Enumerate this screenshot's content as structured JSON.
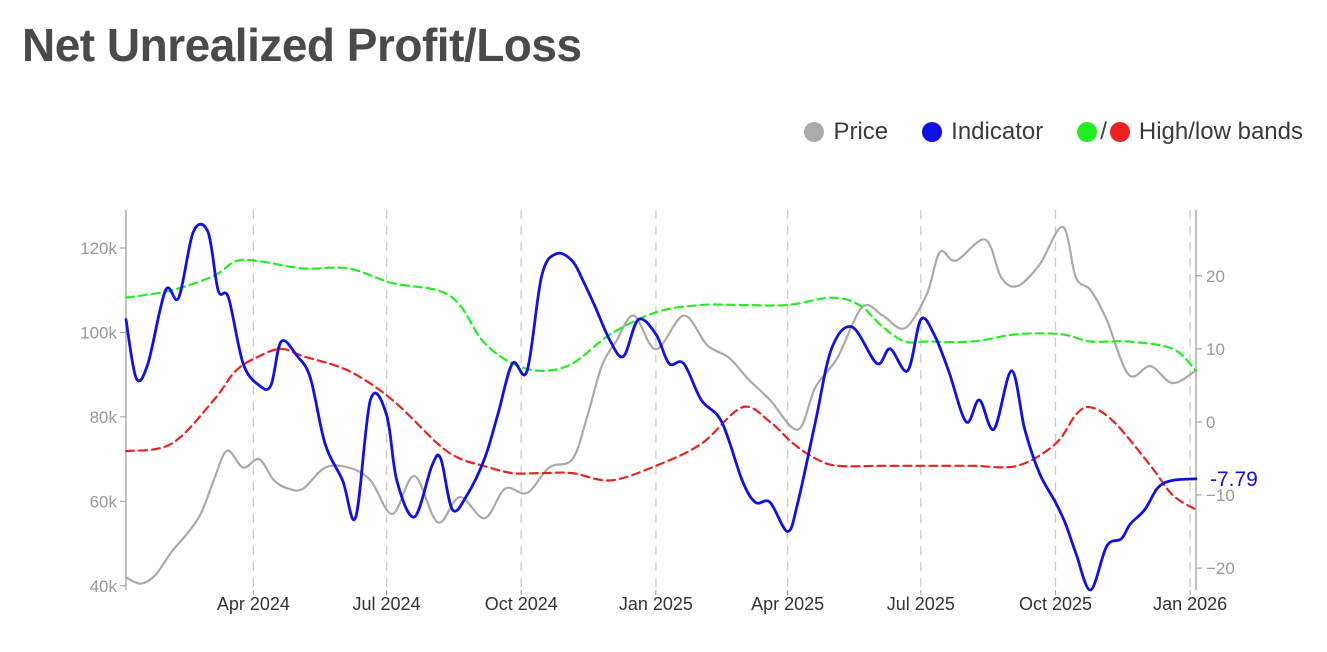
{
  "title": "Net Unrealized Profit/Loss",
  "legend": {
    "price_label": "Price",
    "indicator_label": "Indicator",
    "bands_label": "High/low bands",
    "bands_separator": "/"
  },
  "colors": {
    "price": "#aaaaaa",
    "indicator": "#1010e8",
    "high_band": "#22ee22",
    "low_band": "#ee2020",
    "axis_text": "#999999",
    "grid": "#cccccc"
  },
  "chart_data": {
    "type": "line",
    "title": "Net Unrealized Profit/Loss",
    "x_ticks": [
      "Apr 2024",
      "Jul 2024",
      "Oct 2024",
      "Jan 2025",
      "Apr 2025",
      "Jul 2025",
      "Oct 2025",
      "Jan 2026"
    ],
    "y_left": {
      "label": "",
      "ticks": [
        "40k",
        "60k",
        "80k",
        "100k",
        "120k"
      ],
      "tick_values": [
        40000,
        60000,
        80000,
        100000,
        120000
      ],
      "range": [
        39000,
        129000
      ]
    },
    "y_right": {
      "label": "",
      "ticks": [
        "20",
        "10",
        "0",
        "−10",
        "−20"
      ],
      "tick_values": [
        20,
        10,
        0,
        -10,
        -20
      ],
      "range": [
        -23,
        29
      ]
    },
    "current_value_label": "-7.79",
    "current_value": -7.79,
    "x_range": [
      "2024-01-05",
      "2026-01-05"
    ],
    "vertical_grid_dashed": true,
    "legend_position": "top-right",
    "series": [
      {
        "name": "Price",
        "axis": "left",
        "style": "solid",
        "x": [
          "2024-01-05",
          "2024-01-15",
          "2024-01-25",
          "2024-02-05",
          "2024-02-15",
          "2024-02-25",
          "2024-03-05",
          "2024-03-14",
          "2024-03-25",
          "2024-04-05",
          "2024-04-15",
          "2024-04-25",
          "2024-05-05",
          "2024-05-20",
          "2024-06-05",
          "2024-06-20",
          "2024-07-05",
          "2024-07-20",
          "2024-08-05",
          "2024-08-20",
          "2024-09-06",
          "2024-09-20",
          "2024-10-05",
          "2024-10-20",
          "2024-11-05",
          "2024-11-15",
          "2024-11-25",
          "2024-12-05",
          "2024-12-17",
          "2025-01-01",
          "2025-01-20",
          "2025-02-05",
          "2025-02-20",
          "2025-03-05",
          "2025-03-20",
          "2025-04-08",
          "2025-04-20",
          "2025-05-05",
          "2025-05-22",
          "2025-06-05",
          "2025-06-20",
          "2025-07-05",
          "2025-07-14",
          "2025-07-25",
          "2025-08-14",
          "2025-08-25",
          "2025-09-05",
          "2025-09-20",
          "2025-10-06",
          "2025-10-15",
          "2025-10-25",
          "2025-11-05",
          "2025-11-20",
          "2025-12-05",
          "2025-12-20",
          "2026-01-05"
        ],
        "y": [
          42000,
          40500,
          42500,
          48000,
          52000,
          57000,
          65000,
          72000,
          68000,
          70000,
          65000,
          63000,
          63000,
          68000,
          68000,
          65000,
          57000,
          66000,
          55000,
          61000,
          56000,
          63000,
          62000,
          68000,
          70000,
          80000,
          92000,
          98000,
          104000,
          96000,
          104000,
          97000,
          94000,
          89000,
          84000,
          77000,
          87000,
          94000,
          106000,
          104000,
          101000,
          109000,
          119000,
          117000,
          122000,
          113000,
          111000,
          116000,
          125000,
          113000,
          110000,
          103000,
          90000,
          92000,
          88000,
          91000
        ]
      },
      {
        "name": "Indicator",
        "axis": "right",
        "style": "solid",
        "x": [
          "2024-01-05",
          "2024-01-12",
          "2024-01-20",
          "2024-02-01",
          "2024-02-10",
          "2024-02-20",
          "2024-03-01",
          "2024-03-08",
          "2024-03-15",
          "2024-03-25",
          "2024-04-05",
          "2024-04-13",
          "2024-04-20",
          "2024-05-01",
          "2024-05-10",
          "2024-05-20",
          "2024-06-01",
          "2024-06-10",
          "2024-06-20",
          "2024-07-01",
          "2024-07-08",
          "2024-07-20",
          "2024-08-01",
          "2024-08-07",
          "2024-08-15",
          "2024-08-25",
          "2024-09-06",
          "2024-09-15",
          "2024-09-25",
          "2024-10-05",
          "2024-10-15",
          "2024-10-25",
          "2024-11-05",
          "2024-11-13",
          "2024-11-20",
          "2024-12-01",
          "2024-12-10",
          "2024-12-20",
          "2025-01-01",
          "2025-01-10",
          "2025-01-20",
          "2025-02-01",
          "2025-02-15",
          "2025-03-01",
          "2025-03-10",
          "2025-03-20",
          "2025-04-01",
          "2025-04-08",
          "2025-04-20",
          "2025-05-01",
          "2025-05-15",
          "2025-06-01",
          "2025-06-10",
          "2025-06-22",
          "2025-07-01",
          "2025-07-10",
          "2025-07-20",
          "2025-08-01",
          "2025-08-10",
          "2025-08-20",
          "2025-09-01",
          "2025-09-10",
          "2025-09-20",
          "2025-10-01",
          "2025-10-08",
          "2025-10-15",
          "2025-10-25",
          "2025-11-05",
          "2025-11-15",
          "2025-11-21",
          "2025-12-01",
          "2025-12-10",
          "2025-12-20",
          "2026-01-05"
        ],
        "y": [
          14,
          6,
          8,
          18,
          17,
          26,
          26,
          18,
          17,
          8,
          5,
          5,
          11,
          9,
          6,
          -3,
          -8,
          -13,
          3,
          1,
          -8,
          -13,
          -6,
          -5,
          -12,
          -10,
          -5,
          1,
          8,
          7,
          20,
          23,
          22,
          19,
          16,
          11,
          9,
          14,
          12,
          8,
          8,
          3,
          0,
          -8,
          -11,
          -11,
          -15,
          -11,
          0,
          10,
          13,
          8,
          10,
          7,
          14,
          12,
          7,
          0,
          3,
          -1,
          7,
          -1,
          -7,
          -11,
          -14,
          -18,
          -23,
          -17,
          -16,
          -14,
          -12,
          -9,
          -8,
          -7.79
        ]
      },
      {
        "name": "High band",
        "axis": "right",
        "style": "dashed",
        "x": [
          "2024-01-05",
          "2024-02-05",
          "2024-03-05",
          "2024-03-20",
          "2024-04-05",
          "2024-05-05",
          "2024-06-05",
          "2024-07-05",
          "2024-08-05",
          "2024-08-20",
          "2024-09-05",
          "2024-09-25",
          "2024-10-15",
          "2024-11-05",
          "2024-12-01",
          "2025-01-01",
          "2025-02-01",
          "2025-03-01",
          "2025-04-01",
          "2025-05-01",
          "2025-05-20",
          "2025-06-05",
          "2025-06-20",
          "2025-07-05",
          "2025-08-05",
          "2025-09-05",
          "2025-10-05",
          "2025-10-25",
          "2025-11-20",
          "2025-12-20",
          "2026-01-05"
        ],
        "y": [
          17,
          18,
          20,
          22,
          22,
          21,
          21,
          19,
          18,
          16,
          11,
          8,
          7,
          8,
          12,
          15,
          16,
          16,
          16,
          17,
          16,
          13,
          11,
          11,
          11,
          12,
          12,
          11,
          11,
          10,
          7
        ]
      },
      {
        "name": "Low band",
        "axis": "right",
        "style": "dashed",
        "x": [
          "2024-01-05",
          "2024-02-05",
          "2024-03-05",
          "2024-03-20",
          "2024-04-05",
          "2024-04-20",
          "2024-05-05",
          "2024-06-05",
          "2024-07-05",
          "2024-08-05",
          "2024-08-20",
          "2024-09-05",
          "2024-09-25",
          "2024-10-15",
          "2024-11-05",
          "2024-12-01",
          "2025-01-01",
          "2025-02-01",
          "2025-03-01",
          "2025-03-20",
          "2025-04-05",
          "2025-04-20",
          "2025-05-05",
          "2025-06-05",
          "2025-07-05",
          "2025-08-05",
          "2025-09-05",
          "2025-10-01",
          "2025-10-15",
          "2025-10-25",
          "2025-11-10",
          "2025-12-05",
          "2025-12-20",
          "2026-01-05"
        ],
        "y": [
          -4,
          -3,
          3,
          7,
          9,
          10,
          9,
          7,
          3,
          -3,
          -5,
          -6,
          -7,
          -7,
          -7,
          -8,
          -6,
          -3,
          2,
          0,
          -3,
          -5,
          -6,
          -6,
          -6,
          -6,
          -6,
          -3,
          1,
          2,
          0,
          -6,
          -10,
          -12
        ]
      }
    ]
  }
}
